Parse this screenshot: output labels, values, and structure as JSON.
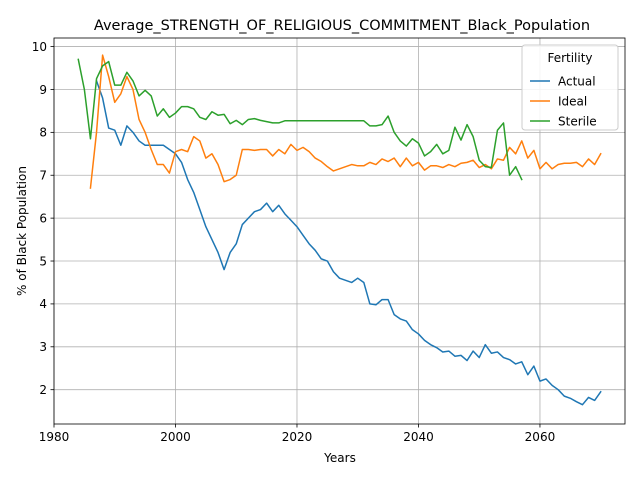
{
  "chart_data": {
    "type": "line",
    "title": "Average_STRENGTH_OF_RELIGIOUS_COMMITMENT_Black_Population",
    "xlabel": "Years",
    "ylabel": "% of Black Population",
    "xlim": [
      1980,
      2074
    ],
    "ylim": [
      1.2,
      10.2
    ],
    "xticks": [
      1980,
      2000,
      2020,
      2040,
      2060
    ],
    "yticks": [
      2,
      3,
      4,
      5,
      6,
      7,
      8,
      9,
      10
    ],
    "grid": true,
    "legend": {
      "title": "Fertility",
      "placement": "top-right"
    },
    "series": [
      {
        "name": "Actual",
        "color": "#1f77b4",
        "x": [
          1987,
          1988,
          1989,
          1990,
          1991,
          1992,
          1993,
          1994,
          1995,
          1996,
          1997,
          1998,
          1999,
          2000,
          2001,
          2002,
          2003,
          2004,
          2005,
          2006,
          2007,
          2008,
          2009,
          2010,
          2011,
          2012,
          2013,
          2014,
          2015,
          2016,
          2017,
          2018,
          2019,
          2020,
          2021,
          2022,
          2023,
          2024,
          2025,
          2026,
          2027,
          2028,
          2029,
          2030,
          2031,
          2032,
          2033,
          2034,
          2035,
          2036,
          2037,
          2038,
          2039,
          2040,
          2041,
          2042,
          2043,
          2044,
          2045,
          2046,
          2047,
          2048,
          2049,
          2050,
          2051,
          2052,
          2053,
          2054,
          2055,
          2056,
          2057,
          2058,
          2059,
          2060,
          2061,
          2062,
          2063,
          2064,
          2065,
          2066,
          2067,
          2068,
          2069,
          2070
        ],
        "y": [
          9.2,
          8.8,
          8.1,
          8.05,
          7.7,
          8.15,
          8.0,
          7.8,
          7.7,
          7.7,
          7.7,
          7.7,
          7.6,
          7.5,
          7.3,
          6.9,
          6.6,
          6.2,
          5.8,
          5.5,
          5.2,
          4.8,
          5.2,
          5.4,
          5.85,
          6.0,
          6.15,
          6.2,
          6.35,
          6.15,
          6.3,
          6.1,
          5.95,
          5.8,
          5.6,
          5.4,
          5.25,
          5.05,
          5.0,
          4.75,
          4.6,
          4.55,
          4.5,
          4.6,
          4.5,
          4.0,
          3.98,
          4.1,
          4.1,
          3.75,
          3.65,
          3.6,
          3.4,
          3.3,
          3.15,
          3.05,
          2.98,
          2.88,
          2.9,
          2.78,
          2.8,
          2.68,
          2.9,
          2.75,
          3.05,
          2.85,
          2.88,
          2.75,
          2.7,
          2.6,
          2.65,
          2.35,
          2.55,
          2.2,
          2.25,
          2.1,
          2.0,
          1.85,
          1.8,
          1.72,
          1.65,
          1.82,
          1.75,
          1.95
        ]
      },
      {
        "name": "Ideal",
        "color": "#ff7f0e",
        "x": [
          1986,
          1987,
          1988,
          1989,
          1990,
          1991,
          1992,
          1993,
          1994,
          1995,
          1996,
          1997,
          1998,
          1999,
          2000,
          2001,
          2002,
          2003,
          2004,
          2005,
          2006,
          2007,
          2008,
          2009,
          2010,
          2011,
          2012,
          2013,
          2014,
          2015,
          2016,
          2017,
          2018,
          2019,
          2020,
          2021,
          2022,
          2023,
          2024,
          2025,
          2026,
          2027,
          2028,
          2029,
          2030,
          2031,
          2032,
          2033,
          2034,
          2035,
          2036,
          2037,
          2038,
          2039,
          2040,
          2041,
          2042,
          2043,
          2044,
          2045,
          2046,
          2047,
          2048,
          2049,
          2050,
          2051,
          2052,
          2053,
          2054,
          2055,
          2056,
          2057,
          2058,
          2059,
          2060,
          2061,
          2062,
          2063,
          2064,
          2065,
          2066,
          2067,
          2068,
          2069,
          2070
        ],
        "y": [
          6.7,
          8.0,
          9.8,
          9.3,
          8.7,
          8.9,
          9.3,
          9.0,
          8.3,
          8.0,
          7.6,
          7.25,
          7.25,
          7.05,
          7.55,
          7.6,
          7.55,
          7.9,
          7.8,
          7.4,
          7.5,
          7.25,
          6.85,
          6.9,
          7.0,
          7.6,
          7.6,
          7.58,
          7.6,
          7.6,
          7.45,
          7.6,
          7.5,
          7.72,
          7.58,
          7.65,
          7.55,
          7.4,
          7.32,
          7.2,
          7.1,
          7.15,
          7.2,
          7.25,
          7.22,
          7.22,
          7.3,
          7.25,
          7.38,
          7.32,
          7.4,
          7.2,
          7.4,
          7.22,
          7.3,
          7.12,
          7.22,
          7.22,
          7.18,
          7.25,
          7.2,
          7.28,
          7.3,
          7.35,
          7.18,
          7.25,
          7.15,
          7.38,
          7.35,
          7.65,
          7.5,
          7.8,
          7.4,
          7.58,
          7.15,
          7.3,
          7.15,
          7.25,
          7.28,
          7.28,
          7.3,
          7.2,
          7.38,
          7.25,
          7.5
        ]
      },
      {
        "name": "Sterile",
        "color": "#2ca02c",
        "x": [
          1984,
          1985,
          1986,
          1987,
          1988,
          1989,
          1990,
          1991,
          1992,
          1993,
          1994,
          1995,
          1996,
          1997,
          1998,
          1999,
          2000,
          2001,
          2002,
          2003,
          2004,
          2005,
          2006,
          2007,
          2008,
          2009,
          2010,
          2011,
          2012,
          2013,
          2014,
          2015,
          2016,
          2017,
          2018,
          2019,
          2020,
          2021,
          2022,
          2023,
          2024,
          2025,
          2026,
          2027,
          2028,
          2029,
          2030,
          2031,
          2032,
          2033,
          2034,
          2035,
          2036,
          2037,
          2038,
          2039,
          2040,
          2041,
          2042,
          2043,
          2044,
          2045,
          2046,
          2047,
          2048,
          2049,
          2050,
          2051,
          2052,
          2053,
          2054,
          2055,
          2056,
          2057
        ],
        "y": [
          9.7,
          9.0,
          7.85,
          9.25,
          9.55,
          9.65,
          9.1,
          9.1,
          9.4,
          9.2,
          8.85,
          8.98,
          8.85,
          8.38,
          8.55,
          8.35,
          8.45,
          8.6,
          8.6,
          8.55,
          8.35,
          8.3,
          8.48,
          8.4,
          8.42,
          8.2,
          8.28,
          8.18,
          8.3,
          8.32,
          8.28,
          8.25,
          8.22,
          8.22,
          8.27,
          8.27,
          8.27,
          8.27,
          8.27,
          8.27,
          8.27,
          8.27,
          8.27,
          8.27,
          8.27,
          8.27,
          8.27,
          8.27,
          8.15,
          8.15,
          8.18,
          8.38,
          8.0,
          7.8,
          7.68,
          7.85,
          7.75,
          7.45,
          7.55,
          7.72,
          7.5,
          7.58,
          8.12,
          7.82,
          8.18,
          7.9,
          7.35,
          7.2,
          7.18,
          8.05,
          8.22,
          7.0,
          7.2,
          6.9
        ]
      }
    ]
  }
}
